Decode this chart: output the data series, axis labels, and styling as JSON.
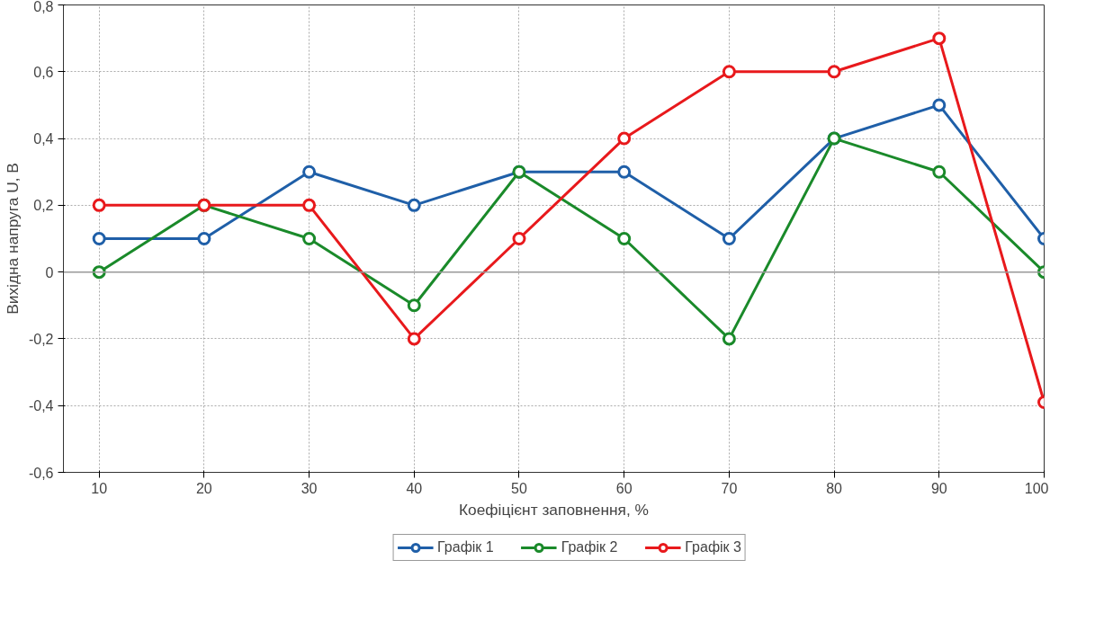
{
  "chart_data": {
    "type": "line",
    "xlabel": "Коефіцієнт заповнення, %",
    "ylabel": "Вихідна напруга U, В",
    "x": [
      10,
      20,
      30,
      40,
      50,
      60,
      70,
      80,
      90,
      100
    ],
    "series": [
      {
        "name": "Графік 1",
        "color": "#1f5fa8",
        "values": [
          0.1,
          0.1,
          0.3,
          0.2,
          0.3,
          0.3,
          0.1,
          0.4,
          0.5,
          0.1
        ]
      },
      {
        "name": "Графік 2",
        "color": "#1a8a2a",
        "values": [
          0,
          0.2,
          0.1,
          -0.1,
          0.3,
          0.1,
          -0.2,
          0.4,
          0.3,
          0
        ]
      },
      {
        "name": "Графік 3",
        "color": "#e8191c",
        "values": [
          0.2,
          0.2,
          0.2,
          -0.2,
          0.1,
          0.4,
          0.6,
          0.6,
          0.7,
          -0.39
        ]
      }
    ],
    "xlim": [
      6.6,
      100
    ],
    "xticks": [
      10,
      20,
      30,
      40,
      50,
      60,
      70,
      80,
      90,
      100
    ],
    "ylim": [
      -0.6,
      0.8
    ],
    "yticks": [
      {
        "value": -0.6,
        "label": "-0,6"
      },
      {
        "value": -0.4,
        "label": "-0,4"
      },
      {
        "value": -0.2,
        "label": "-0,2"
      },
      {
        "value": 0,
        "label": "0"
      },
      {
        "value": 0.2,
        "label": "0,2"
      },
      {
        "value": 0.4,
        "label": "0,4"
      },
      {
        "value": 0.6,
        "label": "0,6"
      },
      {
        "value": 0.8,
        "label": "0,8"
      }
    ],
    "ref_lines": [
      {
        "axis": "y",
        "value": 0,
        "color": "#999999",
        "line_style": "solid"
      }
    ],
    "grid": true,
    "legend": "bottom",
    "marker": "circle",
    "line_style": "solid"
  }
}
